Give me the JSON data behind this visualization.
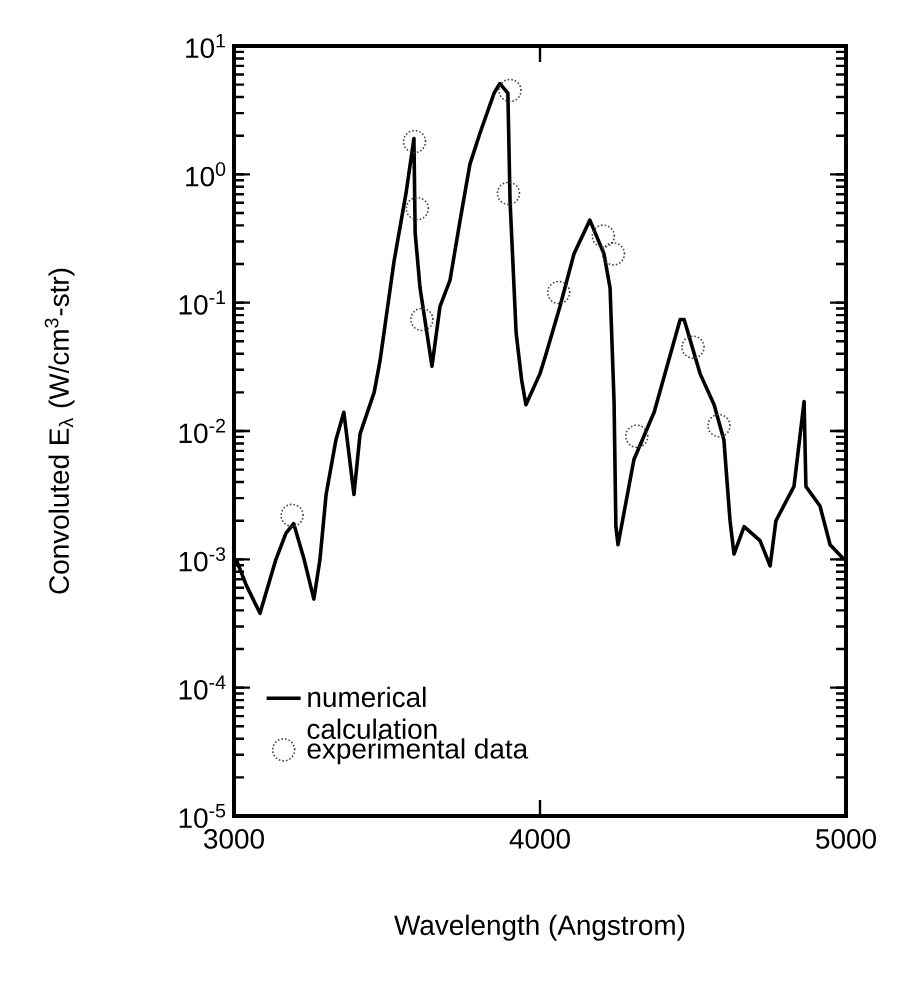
{
  "chart_data": {
    "type": "line",
    "xlabel": "Wavelength (Angstrom)",
    "ylabel": "Convoluted E$_{λ}$ (W/cm$^{3}$-str)",
    "log": "y",
    "xlim": [
      3000,
      5000
    ],
    "xticks": [
      3000,
      4000,
      5000
    ],
    "ylim": [
      1e-05,
      10
    ],
    "yticks": [
      {
        "value": 1e-05,
        "label": "10$^{-5}$"
      },
      {
        "value": 0.0001,
        "label": "10$^{-4}$"
      },
      {
        "value": 0.001,
        "label": "10$^{-3}$"
      },
      {
        "value": 0.01,
        "label": "10$^{-2}$"
      },
      {
        "value": 0.1,
        "label": "10$^{-1}$"
      },
      {
        "value": 1,
        "label": "10$^{0}$"
      },
      {
        "value": 10,
        "label": "10$^{1}$"
      }
    ],
    "legend": "bottom left",
    "series": [
      {
        "name": "numerical calculation",
        "type": "line",
        "color": "#000000",
        "marker": "none",
        "x": [
          3007,
          3040,
          3085,
          3137,
          3170,
          3195,
          3229,
          3261,
          3281,
          3301,
          3333,
          3359,
          3392,
          3412,
          3458,
          3477,
          3490,
          3523,
          3562,
          3588,
          3592,
          3608,
          3647,
          3673,
          3706,
          3739,
          3771,
          3804,
          3850,
          3869,
          3895,
          3902,
          3922,
          3940,
          3954,
          4000,
          4020,
          4065,
          4111,
          4163,
          4209,
          4229,
          4242,
          4248,
          4255,
          4307,
          4373,
          4458,
          4471,
          4523,
          4569,
          4601,
          4621,
          4634,
          4667,
          4719,
          4752,
          4771,
          4830,
          4863,
          4869,
          4915,
          4948,
          4993
        ],
        "values": [
          0.001,
          0.00063,
          0.00038,
          0.001,
          0.0016,
          0.0019,
          0.001,
          0.00049,
          0.001,
          0.0032,
          0.0085,
          0.014,
          0.0032,
          0.0095,
          0.02,
          0.035,
          0.058,
          0.21,
          0.71,
          1.9,
          0.35,
          0.13,
          0.032,
          0.093,
          0.15,
          0.44,
          1.2,
          2.1,
          4.3,
          5.1,
          4.3,
          0.63,
          0.058,
          0.025,
          0.016,
          0.028,
          0.04,
          0.093,
          0.24,
          0.44,
          0.24,
          0.13,
          0.017,
          0.0018,
          0.0013,
          0.006,
          0.014,
          0.074,
          0.074,
          0.028,
          0.016,
          0.0085,
          0.002,
          0.0011,
          0.0018,
          0.0014,
          0.00089,
          0.002,
          0.0037,
          0.017,
          0.0037,
          0.0026,
          0.0013,
          0.001
        ]
      },
      {
        "name": "experimental data",
        "type": "scatter",
        "color": "#444444",
        "marker": "circle",
        "x": [
          3190,
          3590,
          3599,
          3614,
          3897,
          3902,
          4061,
          4207,
          4240,
          4316,
          4500,
          4585
        ],
        "values": [
          0.0022,
          1.8,
          0.54,
          0.074,
          0.71,
          4.5,
          0.12,
          0.33,
          0.24,
          0.0091,
          0.045,
          0.011
        ]
      }
    ]
  }
}
